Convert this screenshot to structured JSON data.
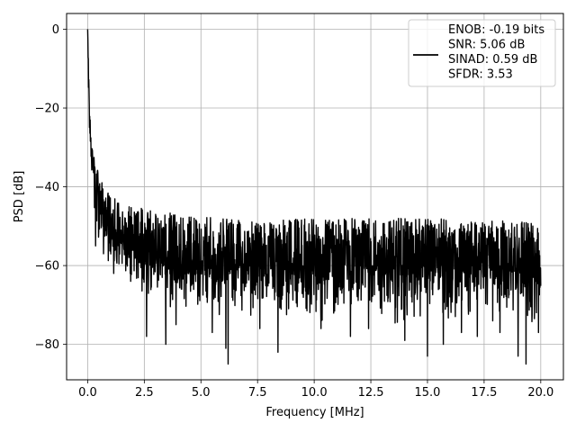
{
  "chart_data": {
    "type": "line",
    "title": "",
    "xlabel": "Frequency [MHz]",
    "ylabel": "PSD [dB]",
    "xlim": [
      -0.93,
      21.0
    ],
    "ylim": [
      -89,
      4
    ],
    "x_ticks": [
      0.0,
      2.5,
      5.0,
      7.5,
      10.0,
      12.5,
      15.0,
      17.5,
      20.0
    ],
    "x_tick_labels": [
      "0.0",
      "2.5",
      "5.0",
      "7.5",
      "10.0",
      "12.5",
      "15.0",
      "17.5",
      "20.0"
    ],
    "y_ticks": [
      0,
      -20,
      -40,
      -60,
      -80
    ],
    "y_tick_labels": [
      "0",
      "−20",
      "−40",
      "−60",
      "−80"
    ],
    "grid": true,
    "legend_position": "top-right",
    "series": [
      {
        "name": "ENOB: -0.19 bits\nSNR: 5.06 dB\nSINAD: 0.59 dB\nSFDR: 3.53",
        "legend_lines": [
          "ENOB: -0.19 bits",
          "SNR: 5.06 dB",
          "SINAD: 0.59 dB",
          "SFDR: 3.53"
        ],
        "color": "#000000",
        "x_range": [
          0.0,
          20.0
        ],
        "envelope": {
          "description_points_x": [
            0.0,
            0.05,
            0.1,
            0.2,
            0.3,
            0.5,
            0.75,
            1.0,
            1.5,
            2.0,
            3.0,
            4.0,
            6.0,
            10.0,
            15.0,
            20.0
          ],
          "peak_y": [
            0,
            -12,
            -22,
            -29,
            -32,
            -36,
            -40,
            -42,
            -44,
            -45,
            -46,
            -47,
            -48,
            -48,
            -48,
            -49
          ],
          "median_y": [
            0,
            -16,
            -26,
            -34,
            -38,
            -44,
            -48,
            -51,
            -54,
            -56,
            -58,
            -59,
            -60,
            -60,
            -60,
            -60
          ],
          "trough_y": [
            0,
            -20,
            -30,
            -40,
            -55,
            -58,
            -60,
            -62,
            -64,
            -66,
            -70,
            -72,
            -74,
            -75,
            -76,
            -77
          ]
        },
        "deep_dips": [
          [
            0.35,
            -55
          ],
          [
            0.7,
            -57
          ],
          [
            1.15,
            -62
          ],
          [
            1.9,
            -64
          ],
          [
            2.6,
            -78
          ],
          [
            3.45,
            -80
          ],
          [
            3.9,
            -75
          ],
          [
            5.5,
            -77
          ],
          [
            6.1,
            -81
          ],
          [
            6.2,
            -85
          ],
          [
            7.6,
            -76
          ],
          [
            8.4,
            -82
          ],
          [
            10.3,
            -76
          ],
          [
            11.6,
            -78
          ],
          [
            12.4,
            -76
          ],
          [
            14.0,
            -79
          ],
          [
            15.0,
            -83
          ],
          [
            15.7,
            -80
          ],
          [
            16.5,
            -77
          ],
          [
            17.2,
            -78
          ],
          [
            18.2,
            -77
          ],
          [
            19.0,
            -83
          ],
          [
            19.35,
            -85
          ],
          [
            19.9,
            -77
          ]
        ]
      }
    ]
  }
}
